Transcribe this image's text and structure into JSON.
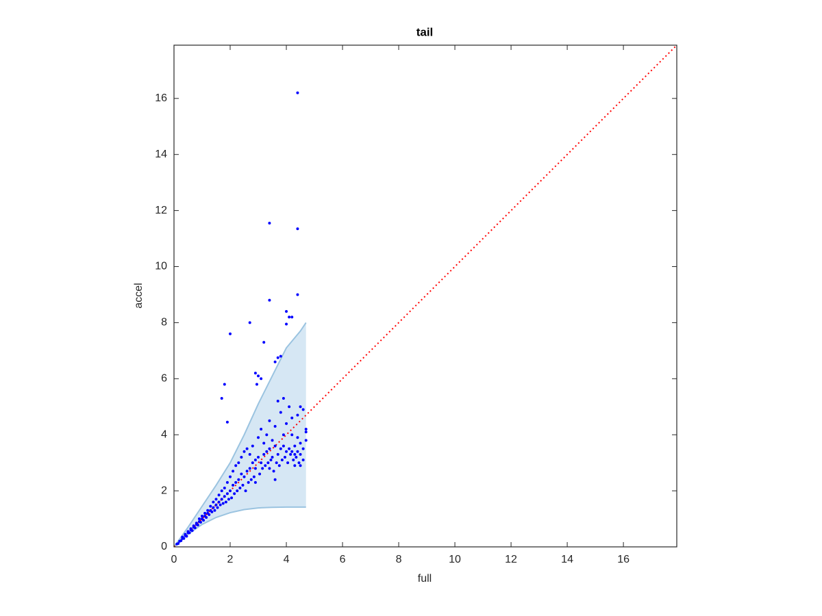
{
  "chart_data": {
    "type": "scatter",
    "title": "tail",
    "xlabel": "full",
    "ylabel": "accel",
    "xlim": [
      0,
      17.9
    ],
    "ylim": [
      0,
      17.9
    ],
    "xticks": [
      0,
      2,
      4,
      6,
      8,
      10,
      12,
      14,
      16
    ],
    "yticks": [
      0,
      2,
      4,
      6,
      8,
      10,
      12,
      14,
      16
    ],
    "grid": false,
    "box": true,
    "series": [
      {
        "type": "area",
        "color": "#9ac3e0",
        "fill": "#d6e7f4",
        "x": [
          0,
          0.25,
          0.5,
          1,
          1.5,
          2,
          2.5,
          3,
          3.5,
          4,
          4.5,
          4.7
        ],
        "upper": [
          0,
          0.35,
          0.7,
          1.45,
          2.2,
          3.0,
          4.0,
          5.1,
          6.1,
          7.1,
          7.7,
          8.0
        ],
        "lower": [
          0,
          0.22,
          0.45,
          0.8,
          1.05,
          1.22,
          1.33,
          1.39,
          1.41,
          1.42,
          1.42,
          1.42
        ]
      },
      {
        "type": "line",
        "color": "#ff0000",
        "style": "dotted",
        "x": [
          0,
          17.9
        ],
        "values": [
          0,
          17.9
        ]
      },
      {
        "type": "scatter",
        "color": "#0000ff",
        "x": [
          4.4,
          3.4,
          4.4,
          4.4,
          3.4,
          2.7,
          4.0,
          4.1,
          4.2,
          4.0,
          2.0,
          3.2,
          3.7,
          3.8,
          3.6,
          1.8,
          1.7,
          2.9,
          3.0,
          3.1,
          2.95,
          1.9,
          4.5,
          4.6,
          3.9,
          4.2,
          4.4,
          4.7,
          4.7,
          4.7,
          4.3,
          4.5,
          3.6,
          2.9,
          3.4,
          0.1,
          0.15,
          0.2,
          0.25,
          0.3,
          0.3,
          0.35,
          0.4,
          0.4,
          0.45,
          0.5,
          0.5,
          0.55,
          0.6,
          0.6,
          0.65,
          0.7,
          0.7,
          0.75,
          0.8,
          0.8,
          0.85,
          0.9,
          0.9,
          0.95,
          1.0,
          1.0,
          1.05,
          1.1,
          1.1,
          1.15,
          1.2,
          1.2,
          1.25,
          1.3,
          1.3,
          1.35,
          1.4,
          1.4,
          1.45,
          1.5,
          1.5,
          1.55,
          1.6,
          1.6,
          1.65,
          1.7,
          1.7,
          1.75,
          1.8,
          1.8,
          1.85,
          1.9,
          1.9,
          1.95,
          2.0,
          2.0,
          2.05,
          2.1,
          2.1,
          2.15,
          2.2,
          2.2,
          2.25,
          2.3,
          2.3,
          2.35,
          2.4,
          2.4,
          2.45,
          2.5,
          2.5,
          2.55,
          2.6,
          2.6,
          2.65,
          2.7,
          2.7,
          2.75,
          2.8,
          2.8,
          2.85,
          2.9,
          2.9,
          3.0,
          3.0,
          3.05,
          3.1,
          3.1,
          3.15,
          3.2,
          3.2,
          3.25,
          3.3,
          3.3,
          3.35,
          3.4,
          3.4,
          3.45,
          3.5,
          3.5,
          3.55,
          3.6,
          3.6,
          3.65,
          3.7,
          3.7,
          3.75,
          3.8,
          3.8,
          3.85,
          3.9,
          3.9,
          3.95,
          4.0,
          4.0,
          4.05,
          4.1,
          4.1,
          4.15,
          4.2,
          4.2,
          4.25,
          4.3,
          4.3,
          4.35,
          4.4,
          4.4,
          4.45,
          4.5,
          4.5,
          4.6,
          4.6
        ],
        "values": [
          16.2,
          11.55,
          11.35,
          9.0,
          8.8,
          8.0,
          8.4,
          8.2,
          8.2,
          7.95,
          7.6,
          7.3,
          6.75,
          6.8,
          6.6,
          5.8,
          5.3,
          6.2,
          6.1,
          6.0,
          5.8,
          4.45,
          5.0,
          4.9,
          5.3,
          4.6,
          4.7,
          4.2,
          4.1,
          3.8,
          2.9,
          2.9,
          2.4,
          2.3,
          2.8,
          0.1,
          0.12,
          0.2,
          0.22,
          0.3,
          0.35,
          0.3,
          0.4,
          0.45,
          0.38,
          0.5,
          0.55,
          0.5,
          0.6,
          0.65,
          0.58,
          0.7,
          0.75,
          0.68,
          0.8,
          0.85,
          0.78,
          0.9,
          1.0,
          0.88,
          1.0,
          1.1,
          0.95,
          1.1,
          1.2,
          1.05,
          1.2,
          1.3,
          1.15,
          1.3,
          1.45,
          1.25,
          1.4,
          1.6,
          1.3,
          1.5,
          1.7,
          1.4,
          1.6,
          1.85,
          1.5,
          1.7,
          2.0,
          1.55,
          1.8,
          2.1,
          1.6,
          1.9,
          2.3,
          1.7,
          2.0,
          2.5,
          1.75,
          2.2,
          2.7,
          1.9,
          2.3,
          2.9,
          2.0,
          2.4,
          3.0,
          2.1,
          2.6,
          3.2,
          2.2,
          2.5,
          3.4,
          2.0,
          2.7,
          3.5,
          2.3,
          2.8,
          3.3,
          2.4,
          3.0,
          3.6,
          2.5,
          3.1,
          2.8,
          3.2,
          3.9,
          2.6,
          3.0,
          4.2,
          2.8,
          3.3,
          3.7,
          2.9,
          3.4,
          4.0,
          3.0,
          3.5,
          4.5,
          3.1,
          3.2,
          3.8,
          2.7,
          3.6,
          4.3,
          3.0,
          3.3,
          5.2,
          2.9,
          3.5,
          4.8,
          3.1,
          3.6,
          4.0,
          3.2,
          3.4,
          4.4,
          3.0,
          3.5,
          5.0,
          3.3,
          3.4,
          4.0,
          3.1,
          3.6,
          3.3,
          3.2,
          3.4,
          3.9,
          3.0,
          3.3,
          3.7,
          3.5,
          3.1
        ]
      }
    ]
  }
}
